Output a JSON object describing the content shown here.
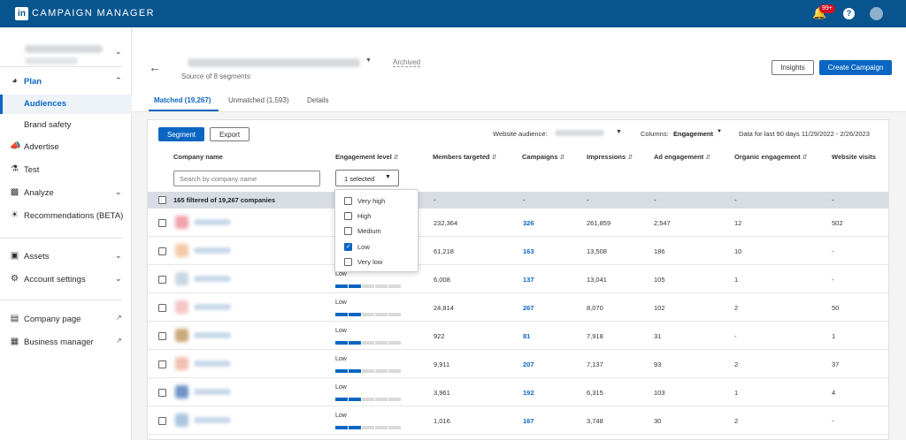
{
  "app": {
    "brand_logo": "in",
    "brand_name": "CAMPAIGN MANAGER",
    "notification_badge": "99+",
    "help_label": "?"
  },
  "sidebar": {
    "items": [
      {
        "label": "Plan",
        "icon": "compass-icon",
        "expanded": true
      },
      {
        "label": "Audiences"
      },
      {
        "label": "Brand safety"
      },
      {
        "label": "Advertise",
        "icon": "megaphone-icon"
      },
      {
        "label": "Test",
        "icon": "flask-icon"
      },
      {
        "label": "Analyze",
        "icon": "bar-chart-icon"
      },
      {
        "label": "Recommendations (BETA)",
        "icon": "lightbulb-icon"
      },
      {
        "label": "Assets",
        "icon": "assets-icon"
      },
      {
        "label": "Account settings",
        "icon": "gear-icon"
      },
      {
        "label": "Company page",
        "icon": "page-icon"
      },
      {
        "label": "Business manager",
        "icon": "linkedin-icon"
      }
    ]
  },
  "header": {
    "archived": "Archived",
    "source": "Source of 8 segments",
    "insights": "Insights",
    "create_campaign": "Create Campaign"
  },
  "tabs": [
    {
      "label": "Matched (19,267)",
      "active": true
    },
    {
      "label": "Unmatched (1,593)"
    },
    {
      "label": "Details"
    }
  ],
  "toolbar": {
    "segment": "Segment",
    "export": "Export",
    "website_audience_label": "Website audience:",
    "columns_label": "Columns:",
    "columns_value": "Engagement",
    "data_range": "Data for last 90 days 11/29/2022 - 2/26/2023"
  },
  "table": {
    "headers": [
      "Company name",
      "Engagement level",
      "Members targeted",
      "Campaigns",
      "Impressions",
      "Ad engagement",
      "Organic engagement",
      "Website visits"
    ],
    "search_placeholder": "Search by company name",
    "engagement_filter": "1 selected",
    "summary": "165 filtered of 19,267 companies",
    "summary_dash": "-",
    "rows": [
      {
        "engagement": "",
        "level": 1,
        "members": "232,364",
        "campaigns": "326",
        "impressions": "261,859",
        "ad": "2,547",
        "organic": "12",
        "visits": "502",
        "logo_color": "#f2a3ad"
      },
      {
        "engagement": "",
        "level": 1,
        "members": "61,218",
        "campaigns": "163",
        "impressions": "13,508",
        "ad": "186",
        "organic": "10",
        "visits": "-",
        "logo_color": "#f4c9a8"
      },
      {
        "engagement": "Low",
        "level": 2,
        "members": "6,008",
        "campaigns": "137",
        "impressions": "13,041",
        "ad": "105",
        "organic": "1",
        "visits": "-",
        "logo_color": "#c8d6e4"
      },
      {
        "engagement": "Low",
        "level": 2,
        "members": "24,814",
        "campaigns": "267",
        "impressions": "8,070",
        "ad": "102",
        "organic": "2",
        "visits": "50",
        "logo_color": "#f6c5c5"
      },
      {
        "engagement": "Low",
        "level": 2,
        "members": "922",
        "campaigns": "81",
        "impressions": "7,918",
        "ad": "31",
        "organic": "-",
        "visits": "1",
        "logo_color": "#c9a77a"
      },
      {
        "engagement": "Low",
        "level": 2,
        "members": "9,911",
        "campaigns": "207",
        "impressions": "7,137",
        "ad": "93",
        "organic": "2",
        "visits": "37",
        "logo_color": "#f2c0b0"
      },
      {
        "engagement": "Low",
        "level": 2,
        "members": "3,961",
        "campaigns": "192",
        "impressions": "6,315",
        "ad": "103",
        "organic": "1",
        "visits": "4",
        "logo_color": "#6f93c9"
      },
      {
        "engagement": "Low",
        "level": 2,
        "members": "1,016",
        "campaigns": "167",
        "impressions": "3,748",
        "ad": "30",
        "organic": "2",
        "visits": "-",
        "logo_color": "#a9c4df"
      }
    ]
  },
  "engagement_dropdown": {
    "options": [
      {
        "label": "Very high",
        "checked": false
      },
      {
        "label": "High",
        "checked": false
      },
      {
        "label": "Medium",
        "checked": false
      },
      {
        "label": "Low",
        "checked": true
      },
      {
        "label": "Very low",
        "checked": false
      }
    ]
  },
  "colors": {
    "topbar": "#07548f",
    "accent": "#0a66c2"
  }
}
